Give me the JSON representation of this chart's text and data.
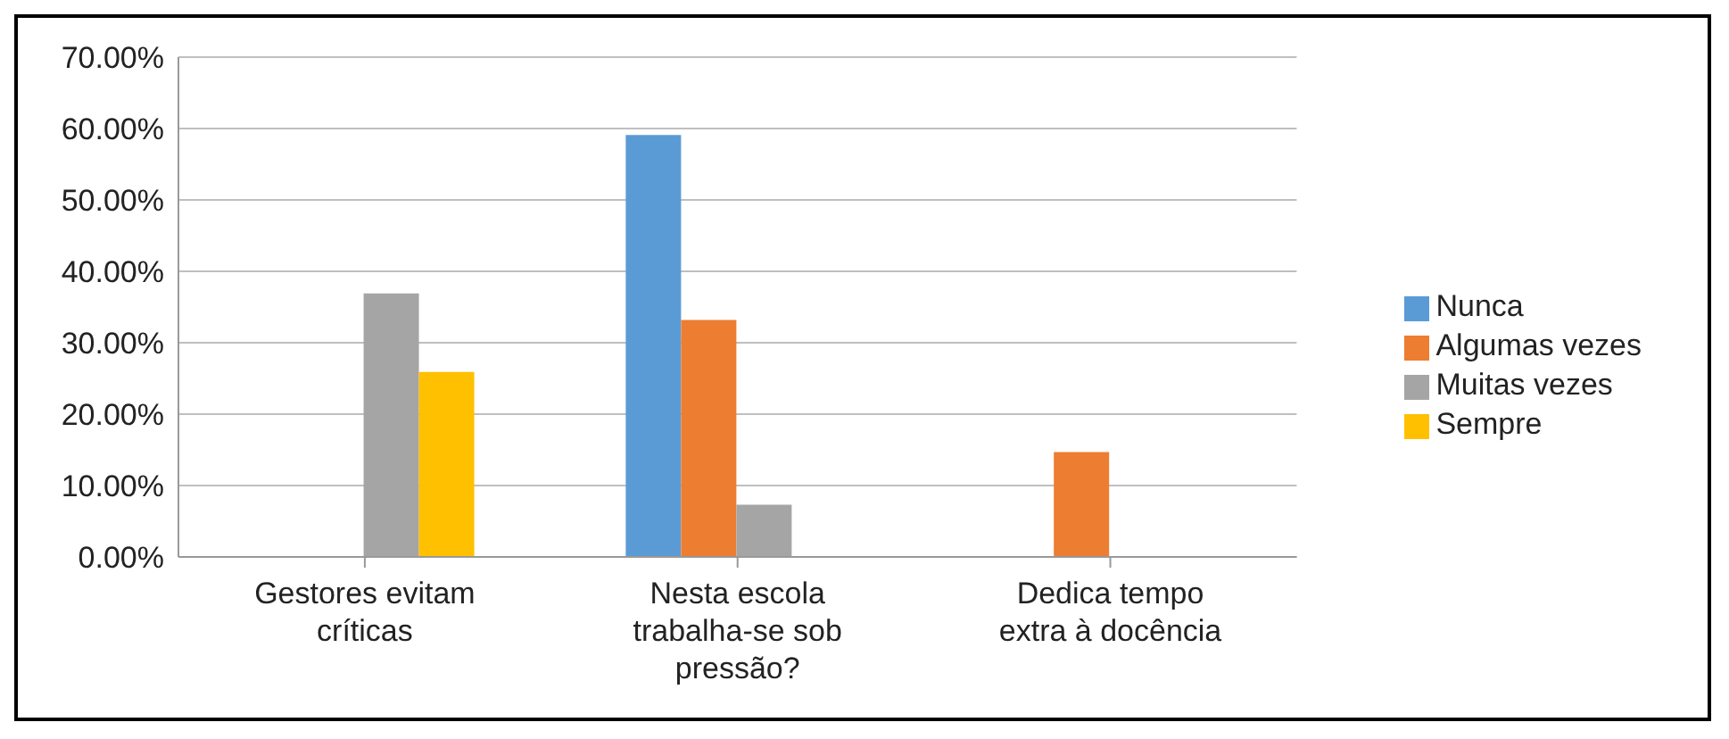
{
  "chart_data": {
    "type": "bar",
    "categories": [
      "Gestores evitam críticas",
      "Nesta escola trabalha-se sob pressão?",
      "Dedica tempo extra à docência"
    ],
    "series": [
      {
        "name": "Nunca",
        "color": "#5b9bd5",
        "values": [
          null,
          59.1,
          0
        ]
      },
      {
        "name": "Algumas vezes",
        "color": "#ed7d31",
        "values": [
          null,
          33.2,
          14.7
        ]
      },
      {
        "name": "Muitas vezes",
        "color": "#a5a5a5",
        "values": [
          36.9,
          7.3,
          null
        ]
      },
      {
        "name": "Sempre",
        "color": "#ffc000",
        "values": [
          25.9,
          0,
          null
        ]
      }
    ],
    "ylim": [
      0,
      70
    ],
    "yticks": [
      {
        "value": 0,
        "label": "0.00%"
      },
      {
        "value": 10,
        "label": "10.00%"
      },
      {
        "value": 20,
        "label": "20.00%"
      },
      {
        "value": 30,
        "label": "30.00%"
      },
      {
        "value": 40,
        "label": "40.00%"
      },
      {
        "value": 50,
        "label": "50.00%"
      },
      {
        "value": 60,
        "label": "60.00%"
      },
      {
        "value": 70,
        "label": "70.00%"
      }
    ],
    "grid": "y",
    "legend": "right"
  }
}
